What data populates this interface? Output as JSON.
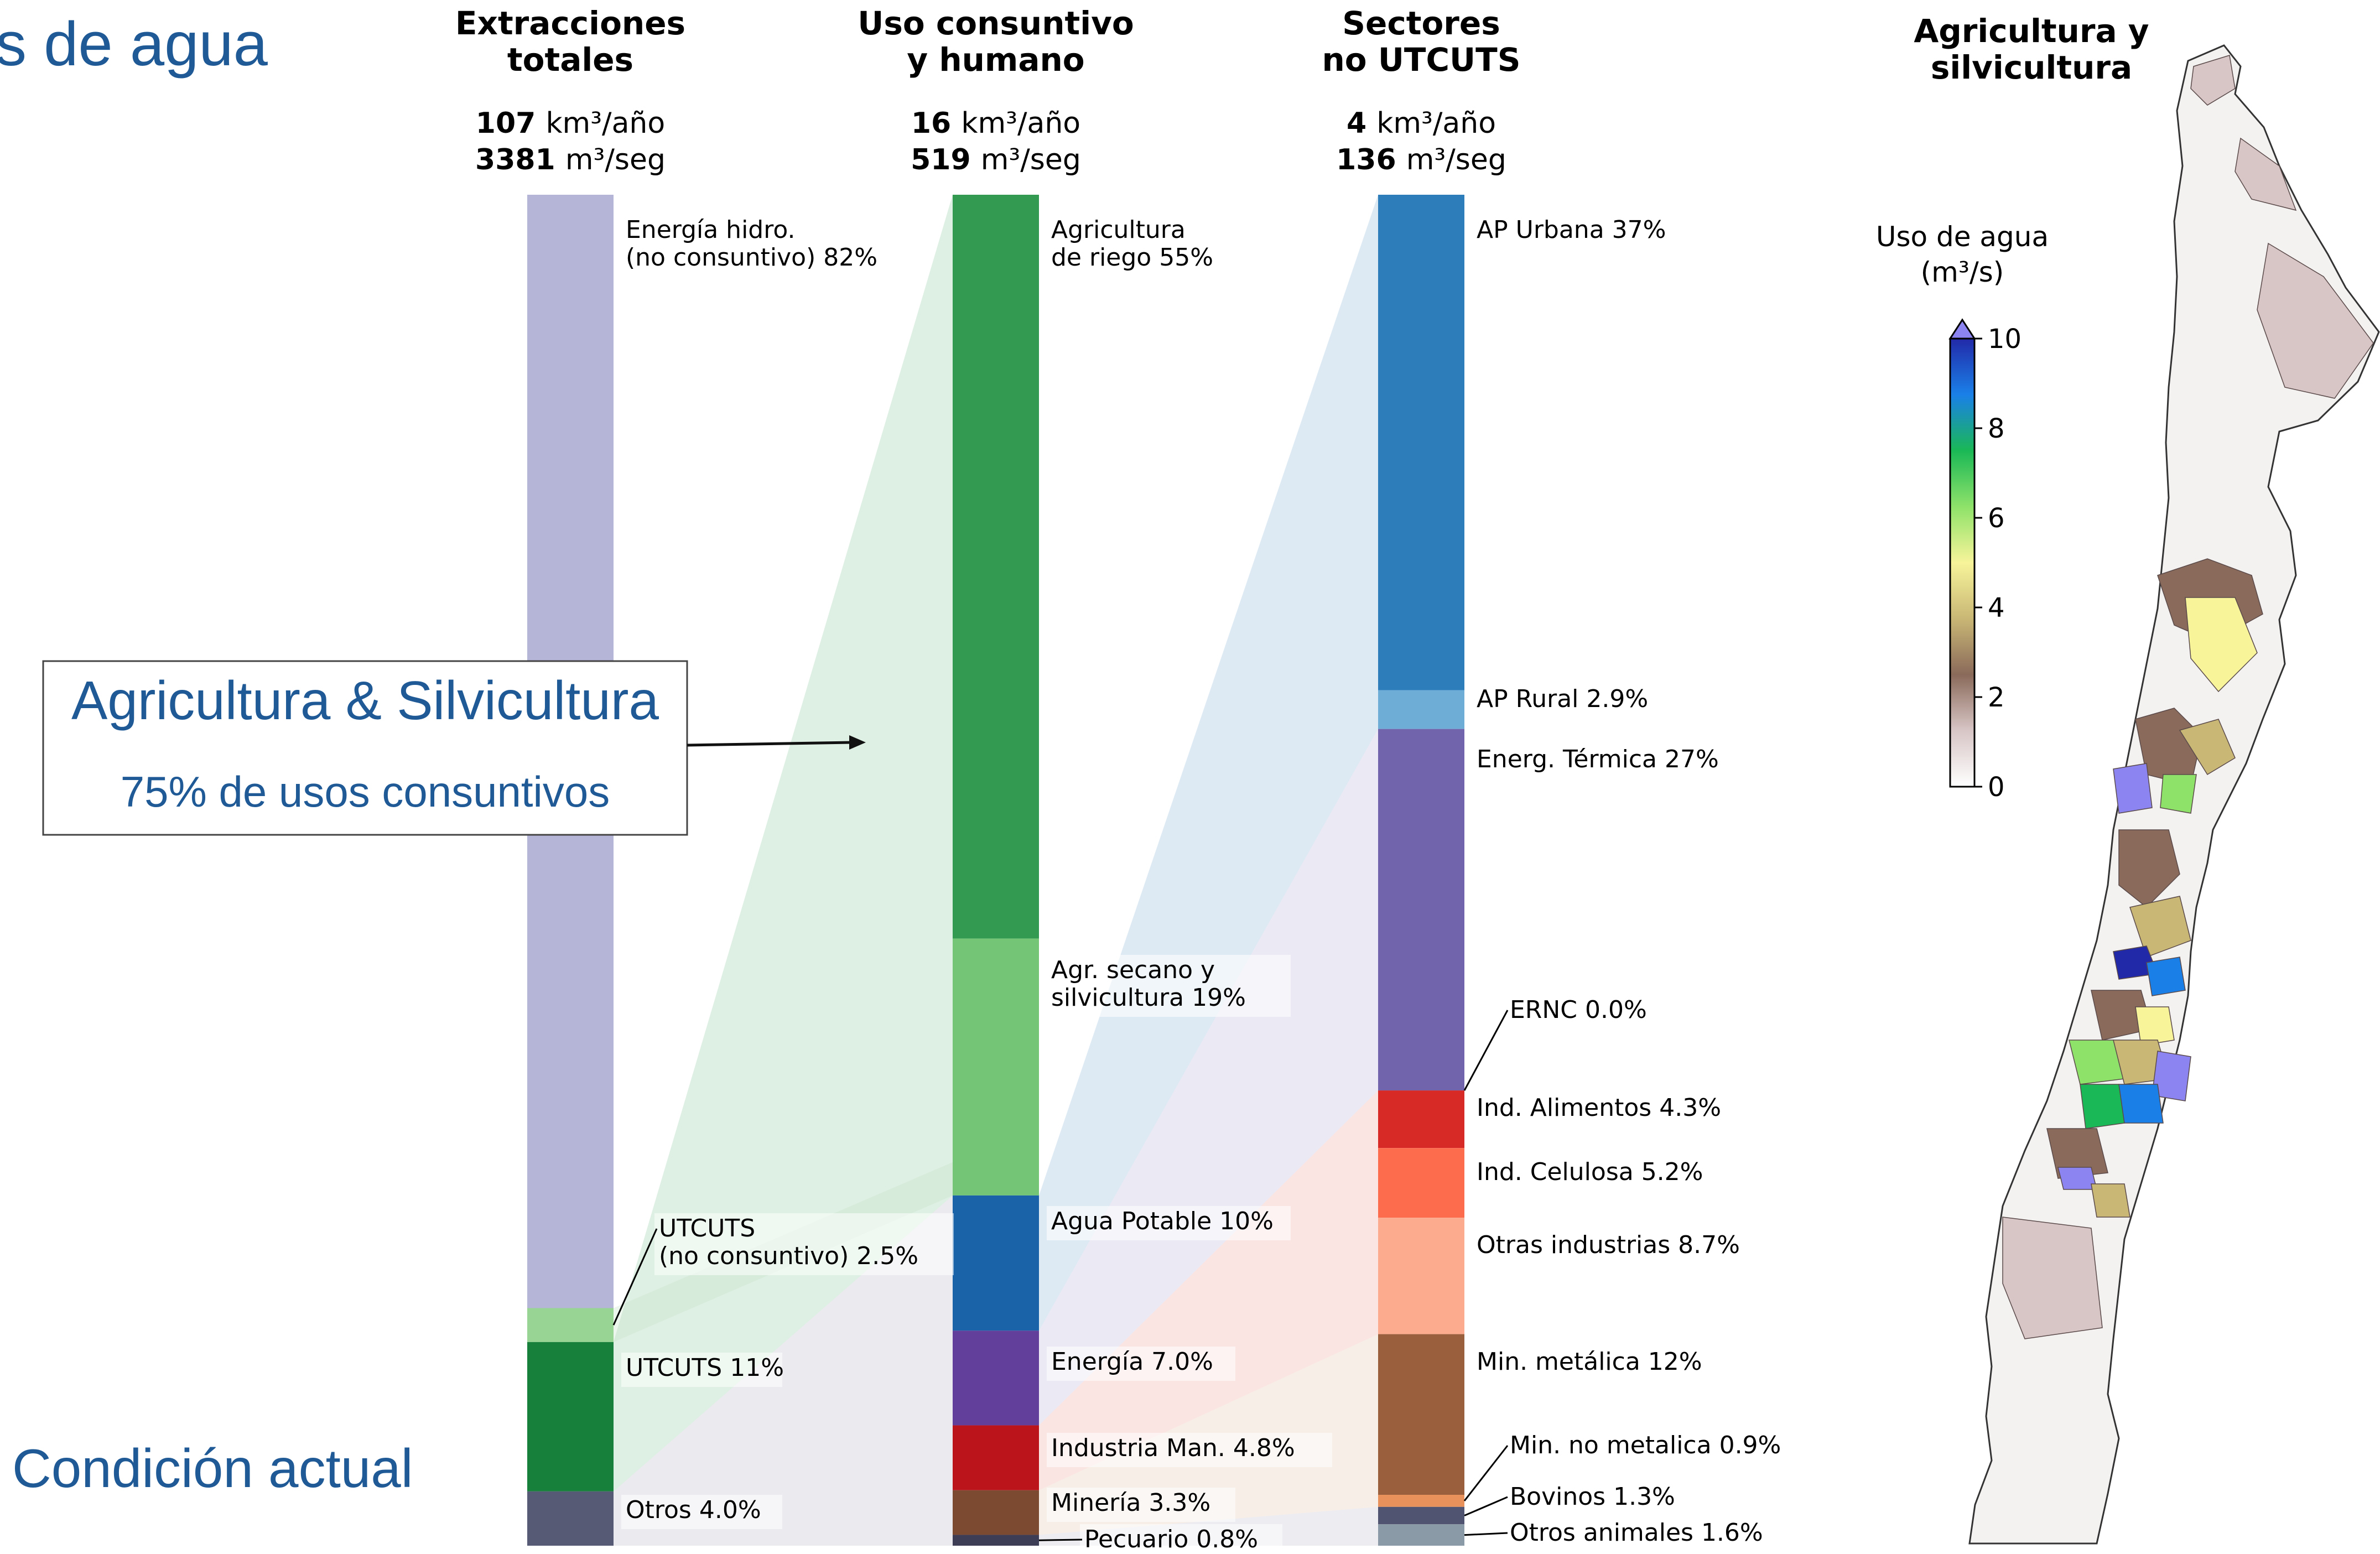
{
  "slide": {
    "title_fragment": "s de agua",
    "callout_title": "Agricultura & Silvicultura",
    "callout_subtitle": "75% de usos consuntivos",
    "condition_label": "Condición actual",
    "accent_color": "#1f5a96"
  },
  "chart_data": [
    {
      "type": "bar",
      "stacked": true,
      "title": "Extracciones totales",
      "total_volume": "107",
      "total_volume_unit": "km³/año",
      "total_flow": "3381",
      "total_flow_unit": "m³/seg",
      "segments": [
        {
          "label": "Energía hidro. (no consuntivo)",
          "percent": 82,
          "percent_label": "82%",
          "color": "#b5b5d7"
        },
        {
          "label": "UTCUTS (no consuntivo)",
          "percent": 2.5,
          "percent_label": "2.5%",
          "color": "#98d594"
        },
        {
          "label": "UTCUTS",
          "percent": 11,
          "percent_label": "11%",
          "color": "#17813c"
        },
        {
          "label": "Otros",
          "percent": 4.0,
          "percent_label": "4.0%",
          "color": "#575a75"
        }
      ]
    },
    {
      "type": "bar",
      "stacked": true,
      "title": "Uso consuntivo y humano",
      "total_volume": "16",
      "total_volume_unit": "km³/año",
      "total_flow": "519",
      "total_flow_unit": "m³/seg",
      "segments": [
        {
          "label": "Agricultura de riego",
          "percent": 55,
          "percent_label": "55%",
          "color": "#329a51"
        },
        {
          "label": "Agr. secano y silvicultura",
          "percent": 19,
          "percent_label": "19%",
          "color": "#75c577"
        },
        {
          "label": "Agua Potable",
          "percent": 10,
          "percent_label": "10%",
          "color": "#1a63a9"
        },
        {
          "label": "Energía",
          "percent": 7.0,
          "percent_label": "7.0%",
          "color": "#623f9b"
        },
        {
          "label": "Industria Man.",
          "percent": 4.8,
          "percent_label": "4.8%",
          "color": "#bb141b"
        },
        {
          "label": "Minería",
          "percent": 3.3,
          "percent_label": "3.3%",
          "color": "#7b4a30"
        },
        {
          "label": "Pecuario",
          "percent": 0.8,
          "percent_label": "0.8%",
          "color": "#3d3d55"
        }
      ]
    },
    {
      "type": "bar",
      "stacked": true,
      "title": "Sectores no UTCUTS",
      "total_volume": "4",
      "total_volume_unit": "km³/año",
      "total_flow": "136",
      "total_flow_unit": "m³/seg",
      "segments": [
        {
          "label": "AP Urbana",
          "percent": 37,
          "percent_label": "37%",
          "color": "#2d7dba"
        },
        {
          "label": "AP Rural",
          "percent": 2.9,
          "percent_label": "2.9%",
          "color": "#6eaed6"
        },
        {
          "label": "Energ. Térmica",
          "percent": 27,
          "percent_label": "27%",
          "color": "#7264ac"
        },
        {
          "label": "ERNC",
          "percent": 0.0,
          "percent_label": "0.0%",
          "color": "#9e9ac8"
        },
        {
          "label": "Ind. Alimentos",
          "percent": 4.3,
          "percent_label": "4.3%",
          "color": "#d72a27"
        },
        {
          "label": "Ind. Celulosa",
          "percent": 5.2,
          "percent_label": "5.2%",
          "color": "#fd6c4d"
        },
        {
          "label": "Otras industrias",
          "percent": 8.7,
          "percent_label": "8.7%",
          "color": "#fcab8f"
        },
        {
          "label": "Min. metálica",
          "percent": 12,
          "percent_label": "12%",
          "color": "#9a603e"
        },
        {
          "label": "Min. no metalica",
          "percent": 0.9,
          "percent_label": "0.9%",
          "color": "#e8915a"
        },
        {
          "label": "Bovinos",
          "percent": 1.3,
          "percent_label": "1.3%",
          "color": "#505470"
        },
        {
          "label": "Otros animales",
          "percent": 1.6,
          "percent_label": "1.6%",
          "color": "#8a9aa6"
        }
      ]
    },
    {
      "type": "heatmap",
      "title": "Agricultura y silvicultura",
      "colorbar_label": "Uso de agua (m³/s)",
      "colorbar_ticks": [
        0,
        2,
        4,
        6,
        8,
        10
      ],
      "range": [
        0,
        10
      ],
      "extend": "max",
      "colors": [
        "#ffffff",
        "#d8c6c6",
        "#8a6a5a",
        "#c9b775",
        "#f7f49a",
        "#8ee26a",
        "#1ab856",
        "#1a80e8",
        "#2229a8",
        "#8c84f0"
      ]
    }
  ]
}
